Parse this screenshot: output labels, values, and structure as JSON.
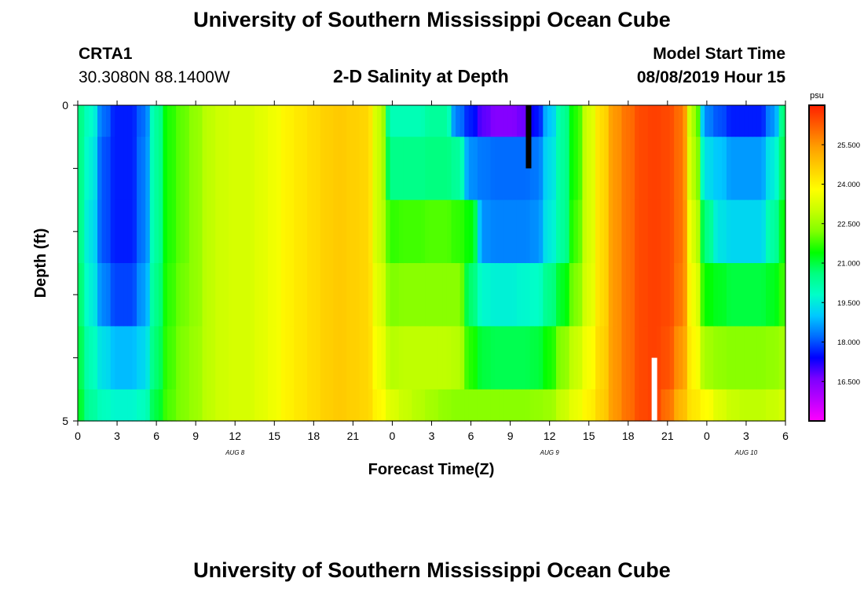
{
  "page": {
    "title_top": "University of Southern Mississippi Ocean Cube",
    "title_bottom": "University of Southern Mississippi Ocean Cube",
    "station_id": "CRTA1",
    "station_coords": "30.3080N 88.1400W",
    "subtitle": "2-D Salinity at Depth",
    "model_label": "Model Start Time",
    "model_time": "08/08/2019 Hour 15"
  },
  "chart_data": {
    "type": "heatmap",
    "title": "2-D Salinity at Depth",
    "xlabel": "Forecast Time(Z)",
    "ylabel": "Depth (ft)",
    "x_range_hours": [
      0,
      54
    ],
    "x_ticks": [
      {
        "h": 0,
        "label": "0"
      },
      {
        "h": 3,
        "label": "3"
      },
      {
        "h": 6,
        "label": "6"
      },
      {
        "h": 9,
        "label": "9"
      },
      {
        "h": 12,
        "label": "12"
      },
      {
        "h": 15,
        "label": "15"
      },
      {
        "h": 18,
        "label": "18"
      },
      {
        "h": 21,
        "label": "21"
      },
      {
        "h": 24,
        "label": "0"
      },
      {
        "h": 27,
        "label": "3"
      },
      {
        "h": 30,
        "label": "6"
      },
      {
        "h": 33,
        "label": "9"
      },
      {
        "h": 36,
        "label": "12"
      },
      {
        "h": 39,
        "label": "15"
      },
      {
        "h": 42,
        "label": "18"
      },
      {
        "h": 45,
        "label": "21"
      },
      {
        "h": 48,
        "label": "0"
      },
      {
        "h": 51,
        "label": "3"
      },
      {
        "h": 54,
        "label": "6"
      }
    ],
    "date_labels": [
      {
        "h": 12,
        "label": "AUG 8"
      },
      {
        "h": 36,
        "label": "AUG 9"
      },
      {
        "h": 51,
        "label": "AUG 10"
      }
    ],
    "y_range": [
      0,
      5
    ],
    "y_tick_labels": [
      {
        "v": 0,
        "label": "0"
      },
      {
        "v": 5,
        "label": "5"
      }
    ],
    "y_minor_ticks": [
      1,
      2,
      3,
      4
    ],
    "depth_layers": 5,
    "colorbar": {
      "unit": "psu",
      "min": 15.0,
      "max": 27.0,
      "ticks": [
        "25.500",
        "24.000",
        "22.500",
        "21.000",
        "19.500",
        "18.000",
        "16.500"
      ],
      "colors": [
        "#ff00ff",
        "#bb00ff",
        "#7d00ff",
        "#0000ff",
        "#006cff",
        "#00c8ff",
        "#00ffc8",
        "#00ff80",
        "#00ff00",
        "#80ff00",
        "#c8ff00",
        "#ffff00",
        "#ffd000",
        "#ff9f00",
        "#ff6000",
        "#ff2000"
      ]
    },
    "profiles": [
      {
        "h": 0,
        "values": [
          20.6,
          20.6,
          20.6,
          20.8,
          21.0,
          21.2
        ]
      },
      {
        "h": 1,
        "values": [
          19.8,
          19.6,
          19.4,
          19.6,
          20.0,
          20.3
        ]
      },
      {
        "h": 2,
        "values": [
          18.2,
          18.0,
          18.0,
          18.4,
          19.3,
          19.9
        ]
      },
      {
        "h": 3,
        "values": [
          17.6,
          17.6,
          17.6,
          17.9,
          18.9,
          19.7
        ]
      },
      {
        "h": 4,
        "values": [
          17.6,
          17.6,
          17.6,
          17.9,
          18.9,
          19.7
        ]
      },
      {
        "h": 5,
        "values": [
          18.2,
          18.3,
          18.3,
          18.6,
          19.2,
          19.9
        ]
      },
      {
        "h": 6,
        "values": [
          20.3,
          20.3,
          20.3,
          20.5,
          20.7,
          21.0
        ]
      },
      {
        "h": 7,
        "values": [
          21.6,
          21.6,
          21.6,
          21.7,
          21.8,
          21.9
        ]
      },
      {
        "h": 8,
        "values": [
          22.0,
          22.0,
          22.0,
          22.1,
          22.2,
          22.2
        ]
      },
      {
        "h": 9,
        "values": [
          22.4,
          22.4,
          22.4,
          22.4,
          22.5,
          22.5
        ]
      },
      {
        "h": 10,
        "values": [
          22.9,
          22.9,
          22.9,
          22.9,
          22.9,
          22.9
        ]
      },
      {
        "h": 11,
        "values": [
          23.1,
          23.1,
          23.1,
          23.1,
          23.1,
          23.1
        ]
      },
      {
        "h": 12,
        "values": [
          23.2,
          23.2,
          23.2,
          23.2,
          23.2,
          23.2
        ]
      },
      {
        "h": 13,
        "values": [
          23.2,
          23.2,
          23.2,
          23.2,
          23.2,
          23.2
        ]
      },
      {
        "h": 14,
        "values": [
          23.4,
          23.4,
          23.4,
          23.4,
          23.4,
          23.4
        ]
      },
      {
        "h": 15,
        "values": [
          23.6,
          23.6,
          23.6,
          23.6,
          23.6,
          23.6
        ]
      },
      {
        "h": 16,
        "values": [
          24.0,
          24.0,
          24.0,
          24.0,
          24.0,
          24.0
        ]
      },
      {
        "h": 17,
        "values": [
          24.2,
          24.2,
          24.2,
          24.2,
          24.2,
          24.2
        ]
      },
      {
        "h": 18,
        "values": [
          24.4,
          24.4,
          24.4,
          24.4,
          24.4,
          24.4
        ]
      },
      {
        "h": 19,
        "values": [
          24.6,
          24.6,
          24.6,
          24.6,
          24.6,
          24.6
        ]
      },
      {
        "h": 20,
        "values": [
          24.7,
          24.7,
          24.7,
          24.7,
          24.7,
          24.7
        ]
      },
      {
        "h": 21,
        "values": [
          24.6,
          24.6,
          24.6,
          24.6,
          24.6,
          24.6
        ]
      },
      {
        "h": 22,
        "values": [
          24.5,
          24.5,
          24.5,
          24.5,
          24.5,
          24.5
        ]
      },
      {
        "h": 23,
        "values": [
          23.0,
          23.0,
          23.0,
          23.3,
          23.6,
          23.9
        ]
      },
      {
        "h": 24,
        "values": [
          20.0,
          20.5,
          21.7,
          22.2,
          22.8,
          23.3
        ]
      },
      {
        "h": 25,
        "values": [
          20.0,
          20.5,
          21.8,
          22.3,
          22.9,
          23.0
        ]
      },
      {
        "h": 26,
        "values": [
          20.0,
          20.5,
          21.8,
          22.3,
          22.9,
          22.8
        ]
      },
      {
        "h": 27,
        "values": [
          20.3,
          20.6,
          21.9,
          22.3,
          22.9,
          22.6
        ]
      },
      {
        "h": 28,
        "values": [
          20.3,
          20.6,
          21.9,
          22.3,
          22.9,
          22.4
        ]
      },
      {
        "h": 29,
        "values": [
          18.3,
          20.3,
          21.7,
          22.3,
          22.8,
          22.3
        ]
      },
      {
        "h": 30,
        "values": [
          17.6,
          18.5,
          21.4,
          20.7,
          21.6,
          22.3
        ]
      },
      {
        "h": 31,
        "values": [
          16.8,
          18.3,
          18.5,
          19.7,
          21.0,
          22.3
        ]
      },
      {
        "h": 32,
        "values": [
          16.5,
          18.2,
          18.4,
          19.6,
          20.9,
          22.3
        ]
      },
      {
        "h": 33,
        "values": [
          16.5,
          18.2,
          18.4,
          19.6,
          20.9,
          22.3
        ]
      },
      {
        "h": 34,
        "values": [
          16.7,
          18.2,
          18.4,
          19.7,
          20.9,
          22.3
        ]
      },
      {
        "h": 35,
        "values": [
          17.5,
          18.3,
          18.5,
          19.8,
          21.0,
          22.4
        ]
      },
      {
        "h": 36,
        "values": [
          19.0,
          19.3,
          19.5,
          20.5,
          21.5,
          22.5
        ]
      },
      {
        "h": 37,
        "values": [
          20.3,
          20.3,
          20.3,
          21.2,
          22.3,
          23.0
        ]
      },
      {
        "h": 38,
        "values": [
          21.6,
          21.6,
          21.8,
          22.2,
          23.0,
          23.5
        ]
      },
      {
        "h": 39,
        "values": [
          23.2,
          23.2,
          23.2,
          23.3,
          23.7,
          24.0
        ]
      },
      {
        "h": 40,
        "values": [
          24.4,
          24.4,
          24.4,
          24.4,
          24.5,
          24.6
        ]
      },
      {
        "h": 41,
        "values": [
          25.5,
          25.5,
          25.5,
          25.5,
          25.5,
          25.5
        ]
      },
      {
        "h": 42,
        "values": [
          26.0,
          26.0,
          26.0,
          26.0,
          26.0,
          26.0
        ]
      },
      {
        "h": 43,
        "values": [
          26.5,
          26.5,
          26.5,
          26.5,
          26.5,
          26.5
        ]
      },
      {
        "h": 44,
        "values": [
          26.6,
          26.6,
          26.6,
          26.6,
          26.6,
          26.6
        ]
      },
      {
        "h": 45,
        "values": [
          26.5,
          26.5,
          26.5,
          26.5,
          26.4,
          26.0
        ]
      },
      {
        "h": 46,
        "values": [
          26.0,
          26.0,
          26.0,
          25.9,
          25.5,
          25.0
        ]
      },
      {
        "h": 47,
        "values": [
          22.6,
          22.8,
          23.2,
          23.6,
          23.9,
          24.2
        ]
      },
      {
        "h": 48,
        "values": [
          18.4,
          19.3,
          20.5,
          21.4,
          22.6,
          23.8
        ]
      },
      {
        "h": 49,
        "values": [
          18.0,
          19.0,
          19.4,
          21.2,
          22.4,
          23.3
        ]
      },
      {
        "h": 50,
        "values": [
          17.6,
          18.6,
          19.2,
          21.0,
          22.3,
          23.0
        ]
      },
      {
        "h": 51,
        "values": [
          17.6,
          18.6,
          19.2,
          21.0,
          22.3,
          22.9
        ]
      },
      {
        "h": 52,
        "values": [
          17.6,
          18.6,
          19.2,
          21.0,
          22.3,
          22.9
        ]
      },
      {
        "h": 53,
        "values": [
          18.5,
          19.5,
          20.2,
          21.2,
          22.4,
          23.0
        ]
      },
      {
        "h": 54,
        "values": [
          20.8,
          21.0,
          21.4,
          21.8,
          22.6,
          23.2
        ]
      }
    ],
    "markers": [
      {
        "name": "marker-black",
        "h": 34.4,
        "depth": 0.5,
        "color": "#000000"
      },
      {
        "name": "marker-white",
        "h": 44.0,
        "depth": 4.5,
        "color": "#ffffff"
      }
    ]
  }
}
